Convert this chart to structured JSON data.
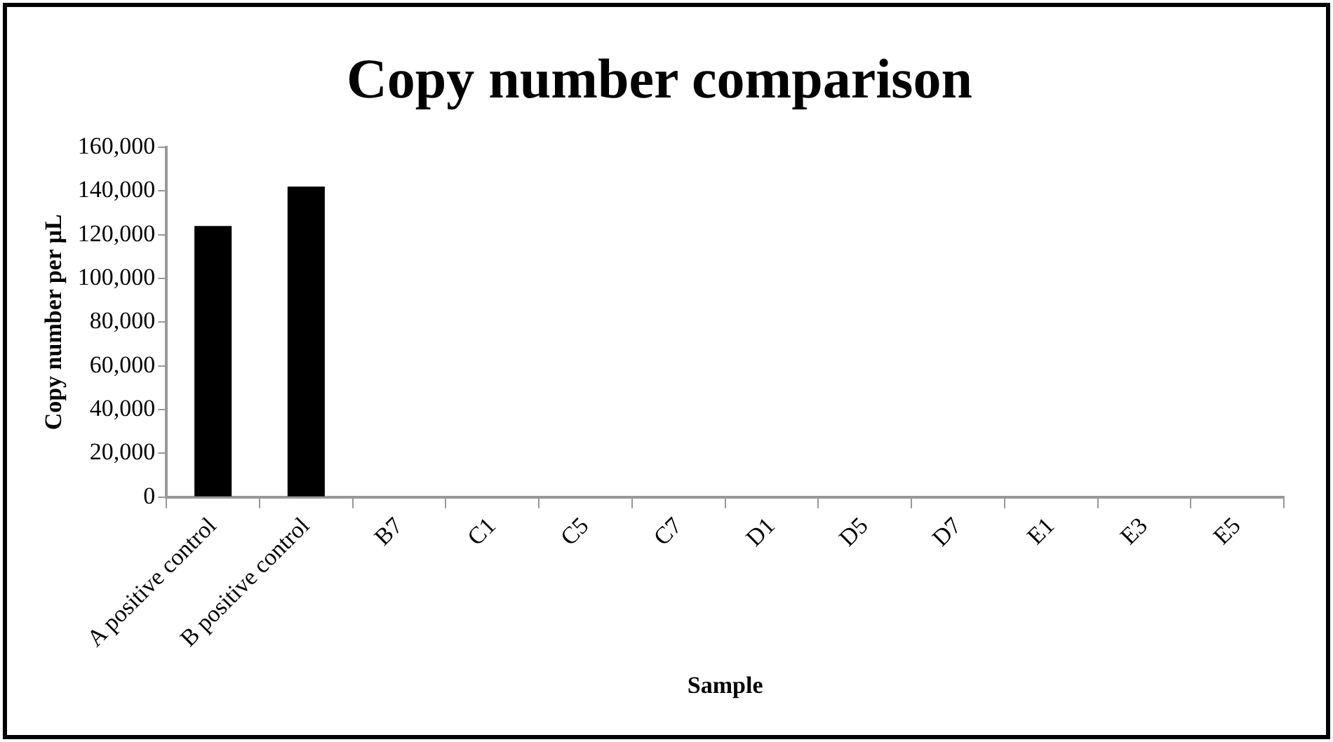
{
  "chart_data": {
    "type": "bar",
    "title": "Copy number comparison",
    "xlabel": "Sample",
    "ylabel": "Copy number per μL",
    "categories": [
      "A positive control",
      "B positive control",
      "B7",
      "C1",
      "C5",
      "C7",
      "D1",
      "D5",
      "D7",
      "E1",
      "E3",
      "E5"
    ],
    "values": [
      124000,
      142000,
      0,
      0,
      0,
      0,
      0,
      0,
      0,
      0,
      0,
      0
    ],
    "color": "#000000",
    "ylim": [
      0,
      160000
    ],
    "yticks": [
      0,
      {
        "value": 20000,
        "label": "20,000"
      },
      {
        "value": 40000,
        "label": "40,000"
      },
      {
        "value": 60000,
        "label": "60,000"
      },
      {
        "value": 80000,
        "label": "80,000"
      },
      {
        "value": 100000,
        "label": "100,000"
      },
      {
        "value": 120000,
        "label": "120,000"
      },
      {
        "value": 140000,
        "label": "140,000"
      },
      {
        "value": 160000,
        "label": "160,000"
      }
    ],
    "grid": false,
    "legend": false
  }
}
